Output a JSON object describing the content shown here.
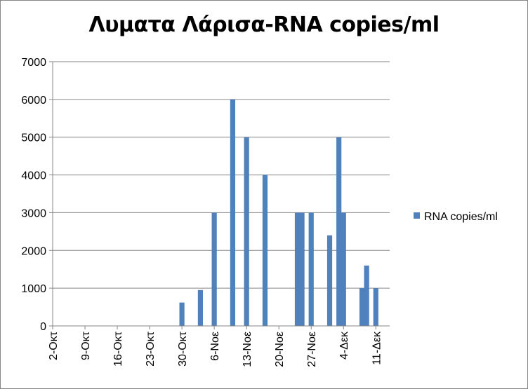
{
  "chart_data": {
    "type": "bar",
    "title": "Λυματα Λάρισα-RNA copies/ml",
    "xlabel": "",
    "ylabel": "",
    "ylim": [
      0,
      7000
    ],
    "yticks": [
      0,
      1000,
      2000,
      3000,
      4000,
      5000,
      6000,
      7000
    ],
    "x_range": [
      "2020-10-02",
      "2020-12-14"
    ],
    "xtick_labels": [
      {
        "date": "2020-10-02",
        "label": "2-Οκτ"
      },
      {
        "date": "2020-10-09",
        "label": "9-Οκτ"
      },
      {
        "date": "2020-10-16",
        "label": "16-Οκτ"
      },
      {
        "date": "2020-10-23",
        "label": "23-Οκτ"
      },
      {
        "date": "2020-10-30",
        "label": "30-Οκτ"
      },
      {
        "date": "2020-11-06",
        "label": "6-Νοε"
      },
      {
        "date": "2020-11-13",
        "label": "13-Νοε"
      },
      {
        "date": "2020-11-20",
        "label": "20-Νοε"
      },
      {
        "date": "2020-11-27",
        "label": "27-Νοε"
      },
      {
        "date": "2020-12-04",
        "label": "4-Δεκ"
      },
      {
        "date": "2020-12-11",
        "label": "11-Δεκ"
      }
    ],
    "grid": {
      "horizontal": true,
      "vertical": false
    },
    "legend": {
      "position": "right"
    },
    "series": [
      {
        "name": "RNA copies/ml",
        "color": "#4f81bd",
        "points": [
          {
            "x": "2020-10-30",
            "y": 620
          },
          {
            "x": "2020-11-03",
            "y": 950
          },
          {
            "x": "2020-11-06",
            "y": 3000
          },
          {
            "x": "2020-11-10",
            "y": 6000
          },
          {
            "x": "2020-11-13",
            "y": 5000
          },
          {
            "x": "2020-11-17",
            "y": 4000
          },
          {
            "x": "2020-11-24",
            "y": 3000
          },
          {
            "x": "2020-11-25",
            "y": 3000
          },
          {
            "x": "2020-11-27",
            "y": 3000
          },
          {
            "x": "2020-12-01",
            "y": 2400
          },
          {
            "x": "2020-12-03",
            "y": 5000
          },
          {
            "x": "2020-12-04",
            "y": 3000
          },
          {
            "x": "2020-12-08",
            "y": 1000
          },
          {
            "x": "2020-12-09",
            "y": 1600
          },
          {
            "x": "2020-12-11",
            "y": 1000
          }
        ]
      }
    ]
  }
}
